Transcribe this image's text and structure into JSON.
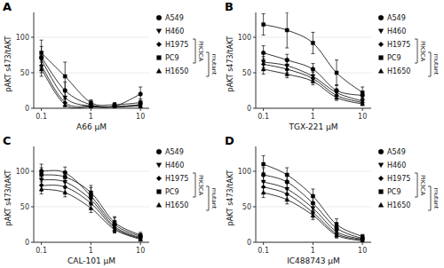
{
  "chart_data": [
    {
      "type": "line",
      "title": "A",
      "x_label": "A66 μM",
      "y_label": "pAKT s473/tAKT",
      "log": "x",
      "xlim": [
        0.07,
        15
      ],
      "xticks": [
        0.1,
        1,
        10
      ],
      "ylim": [
        0,
        135
      ],
      "yticks": [
        0,
        50,
        100
      ],
      "x": [
        0.1,
        0.3,
        1.0,
        3.0,
        10.0
      ],
      "legend": "right",
      "annotations": [
        "PIK3CA",
        "mutant"
      ],
      "series": [
        {
          "name": "A549",
          "color": "black",
          "marker": "circle",
          "values": [
            72,
            25,
            5,
            3,
            20
          ],
          "errors": [
            15,
            12,
            3,
            2,
            10
          ]
        },
        {
          "name": "H460",
          "color": "black",
          "marker": "triangle-down",
          "values": [
            68,
            15,
            3,
            2,
            5
          ],
          "errors": [
            12,
            8,
            2,
            1,
            3
          ]
        },
        {
          "name": "H1975",
          "color": "black",
          "marker": "diamond",
          "values": [
            60,
            8,
            3,
            2,
            5
          ],
          "errors": [
            10,
            5,
            2,
            1,
            3
          ]
        },
        {
          "name": "PC9",
          "color": "black",
          "marker": "square",
          "values": [
            78,
            45,
            8,
            5,
            8
          ],
          "errors": [
            18,
            20,
            4,
            3,
            5
          ]
        },
        {
          "name": "H1650",
          "color": "black",
          "marker": "triangle-up",
          "values": [
            55,
            5,
            2,
            2,
            3
          ],
          "errors": [
            10,
            3,
            1,
            1,
            2
          ]
        }
      ]
    },
    {
      "type": "line",
      "title": "B",
      "x_label": "TGX-221 μM",
      "y_label": "pAKT s473/tAKT",
      "log": "x",
      "xlim": [
        0.07,
        15
      ],
      "xticks": [
        0.1,
        1,
        10
      ],
      "ylim": [
        0,
        135
      ],
      "yticks": [
        0,
        50,
        100
      ],
      "x": [
        0.1,
        0.3,
        1.0,
        3.0,
        10.0
      ],
      "legend": "right",
      "annotations": [
        "PIK3CA",
        "mutant"
      ],
      "series": [
        {
          "name": "A549",
          "color": "black",
          "marker": "circle",
          "values": [
            78,
            68,
            55,
            25,
            18
          ],
          "errors": [
            10,
            8,
            8,
            8,
            5
          ]
        },
        {
          "name": "H460",
          "color": "black",
          "marker": "triangle-down",
          "values": [
            65,
            60,
            45,
            22,
            10
          ],
          "errors": [
            8,
            6,
            6,
            5,
            4
          ]
        },
        {
          "name": "H1975",
          "color": "black",
          "marker": "diamond",
          "values": [
            62,
            55,
            42,
            18,
            8
          ],
          "errors": [
            8,
            5,
            5,
            4,
            3
          ]
        },
        {
          "name": "PC9",
          "color": "black",
          "marker": "square",
          "values": [
            118,
            110,
            92,
            50,
            22
          ],
          "errors": [
            15,
            25,
            15,
            18,
            8
          ]
        },
        {
          "name": "H1650",
          "color": "black",
          "marker": "triangle-up",
          "values": [
            55,
            48,
            38,
            15,
            6
          ],
          "errors": [
            7,
            5,
            5,
            4,
            2
          ]
        }
      ]
    },
    {
      "type": "line",
      "title": "C",
      "x_label": "CAL-101 μM",
      "y_label": "pAKT s473/tAKT",
      "log": "x",
      "xlim": [
        0.07,
        15
      ],
      "xticks": [
        0.1,
        1,
        10
      ],
      "ylim": [
        0,
        135
      ],
      "yticks": [
        0,
        50,
        100
      ],
      "x": [
        0.1,
        0.3,
        1.0,
        3.0,
        10.0
      ],
      "legend": "right",
      "annotations": [
        "PIK3CA",
        "mutant"
      ],
      "series": [
        {
          "name": "A549",
          "color": "black",
          "marker": "circle",
          "values": [
            100,
            98,
            65,
            25,
            8
          ],
          "errors": [
            10,
            8,
            12,
            10,
            4
          ]
        },
        {
          "name": "H460",
          "color": "black",
          "marker": "triangle-down",
          "values": [
            88,
            85,
            60,
            22,
            6
          ],
          "errors": [
            8,
            7,
            8,
            8,
            3
          ]
        },
        {
          "name": "H1975",
          "color": "black",
          "marker": "diamond",
          "values": [
            80,
            78,
            55,
            20,
            5
          ],
          "errors": [
            8,
            7,
            7,
            6,
            2
          ]
        },
        {
          "name": "PC9",
          "color": "black",
          "marker": "square",
          "values": [
            95,
            92,
            70,
            28,
            10
          ],
          "errors": [
            10,
            8,
            10,
            8,
            4
          ]
        },
        {
          "name": "H1650",
          "color": "black",
          "marker": "triangle-up",
          "values": [
            75,
            70,
            48,
            18,
            4
          ],
          "errors": [
            7,
            6,
            6,
            5,
            2
          ]
        }
      ]
    },
    {
      "type": "line",
      "title": "D",
      "x_label": "IC488743 μM",
      "y_label": "pAKT s473/tAKT",
      "log": "x",
      "xlim": [
        0.07,
        15
      ],
      "xticks": [
        0.1,
        1,
        10
      ],
      "ylim": [
        0,
        135
      ],
      "yticks": [
        0,
        50,
        100
      ],
      "x": [
        0.1,
        0.3,
        1.0,
        3.0,
        10.0
      ],
      "legend": "right",
      "annotations": [
        "PIK3CA",
        "mutant"
      ],
      "series": [
        {
          "name": "A549",
          "color": "black",
          "marker": "circle",
          "values": [
            95,
            85,
            55,
            20,
            5
          ],
          "errors": [
            10,
            10,
            10,
            8,
            3
          ]
        },
        {
          "name": "H460",
          "color": "black",
          "marker": "triangle-down",
          "values": [
            85,
            75,
            48,
            15,
            4
          ],
          "errors": [
            8,
            8,
            8,
            6,
            2
          ]
        },
        {
          "name": "H1975",
          "color": "black",
          "marker": "diamond",
          "values": [
            78,
            68,
            42,
            12,
            3
          ],
          "errors": [
            8,
            7,
            7,
            5,
            2
          ]
        },
        {
          "name": "PC9",
          "color": "black",
          "marker": "square",
          "values": [
            110,
            95,
            65,
            25,
            8
          ],
          "errors": [
            12,
            10,
            10,
            8,
            3
          ]
        },
        {
          "name": "H1650",
          "color": "black",
          "marker": "triangle-up",
          "values": [
            70,
            60,
            38,
            10,
            2
          ],
          "errors": [
            7,
            6,
            6,
            4,
            1
          ]
        }
      ]
    }
  ]
}
